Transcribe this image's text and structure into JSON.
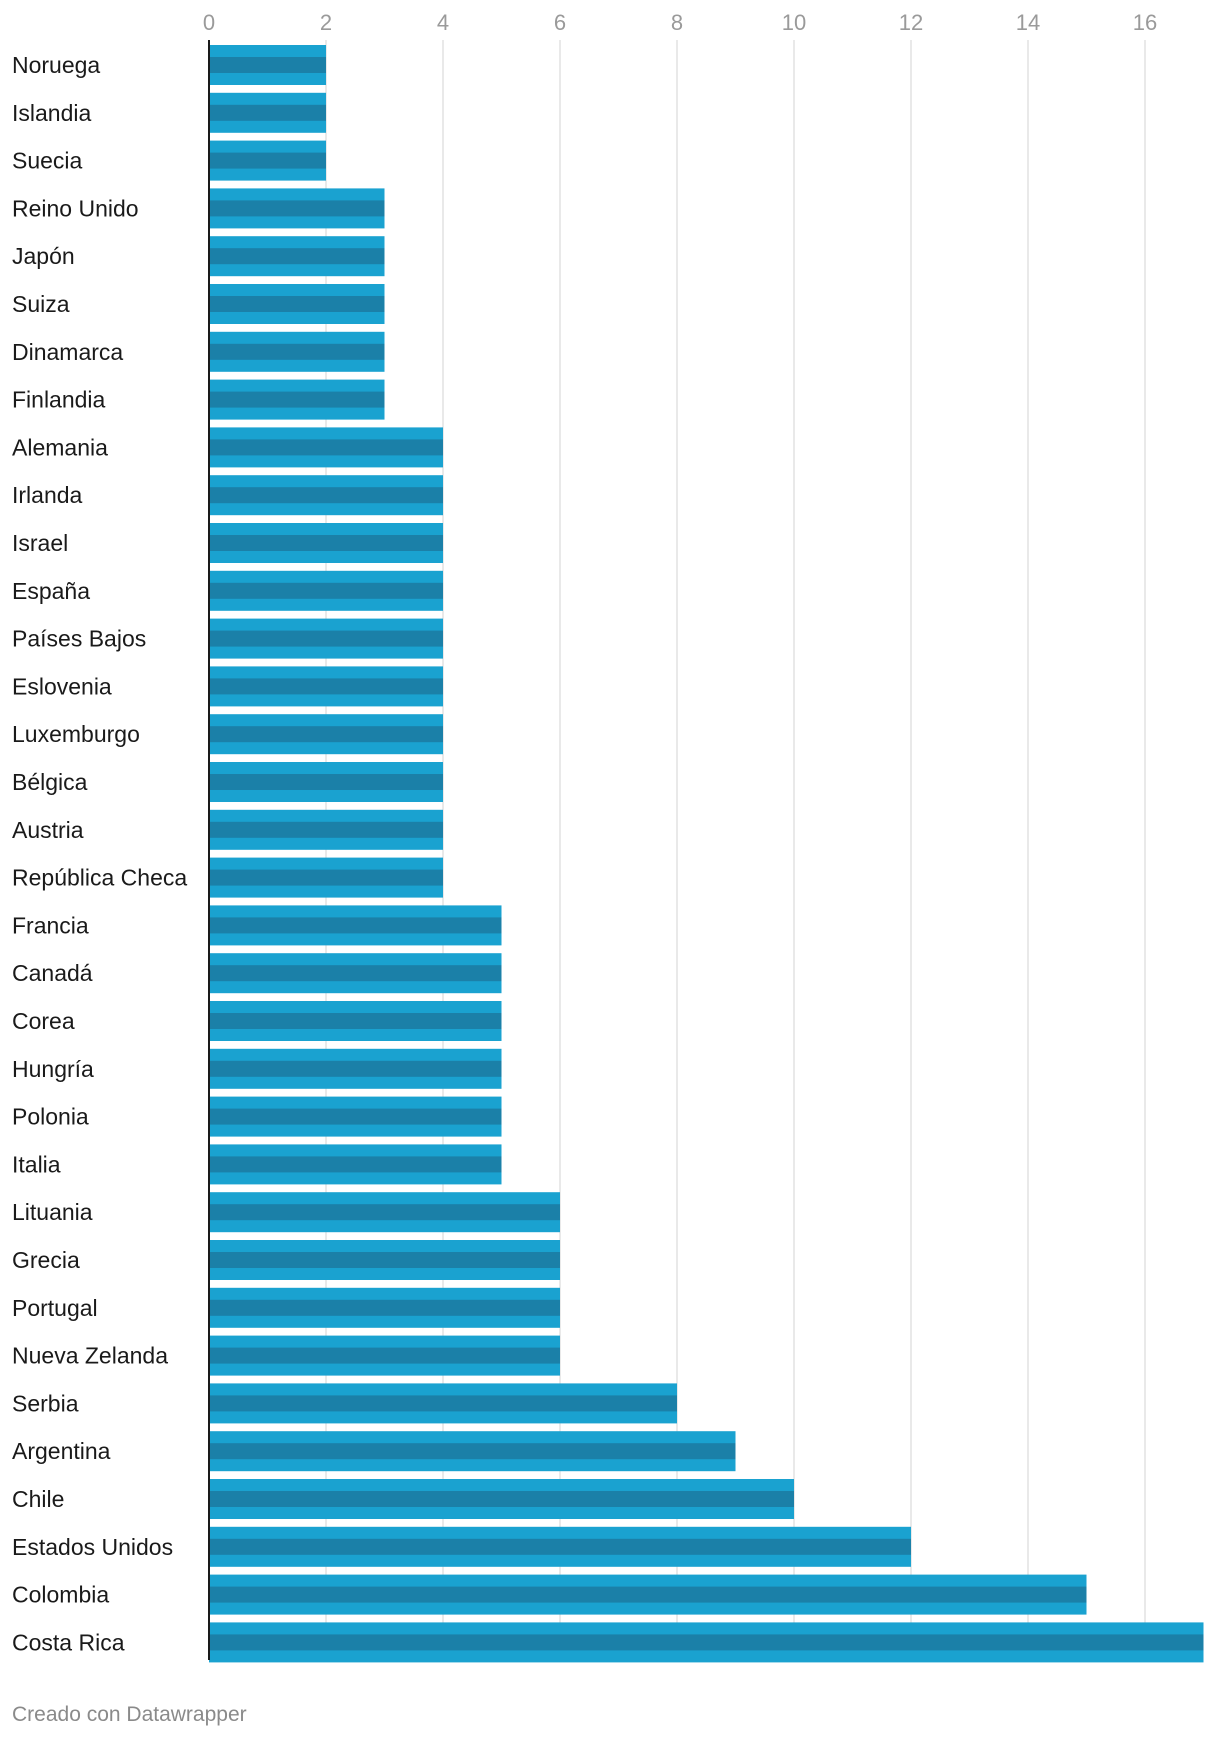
{
  "chart_data": {
    "type": "bar",
    "orientation": "horizontal",
    "title": "",
    "xlabel": "",
    "ylabel": "",
    "xlim": [
      0,
      17
    ],
    "ticks": [
      0,
      2,
      4,
      6,
      8,
      10,
      12,
      14,
      16
    ],
    "grid": true,
    "categories": [
      "Noruega",
      "Islandia",
      "Suecia",
      "Reino Unido",
      "Japón",
      "Suiza",
      "Dinamarca",
      "Finlandia",
      "Alemania",
      "Irlanda",
      "Israel",
      "España",
      "Países Bajos",
      "Eslovenia",
      "Luxemburgo",
      "Bélgica",
      "Austria",
      "República Checa",
      "Francia",
      "Canadá",
      "Corea",
      "Hungría",
      "Polonia",
      "Italia",
      "Lituania",
      "Grecia",
      "Portugal",
      "Nueva Zelanda",
      "Serbia",
      "Argentina",
      "Chile",
      "Estados Unidos",
      "Colombia",
      "Costa Rica"
    ],
    "values": [
      2,
      2,
      2,
      3,
      3,
      3,
      3,
      3,
      4,
      4,
      4,
      4,
      4,
      4,
      4,
      4,
      4,
      4,
      5,
      5,
      5,
      5,
      5,
      5,
      6,
      6,
      6,
      6,
      8,
      9,
      10,
      12,
      15,
      17
    ]
  },
  "colors": {
    "bar": "#1aa2d0",
    "bar_inner": "#1b80a8",
    "grid": "#e2e2e2",
    "axis": "#1a1a1a"
  },
  "footer": {
    "credit": "Creado con Datawrapper"
  }
}
